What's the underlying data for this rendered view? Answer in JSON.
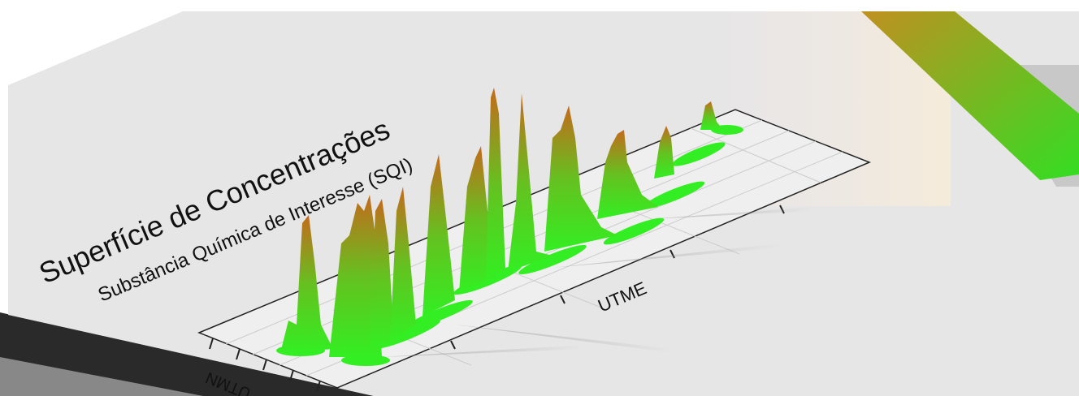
{
  "title": "Superfície de Concentrações",
  "subtitle": "Substância Química de Interesse (SQI)",
  "x_axis_label": "UTME",
  "y_axis_label": "UTMN"
}
